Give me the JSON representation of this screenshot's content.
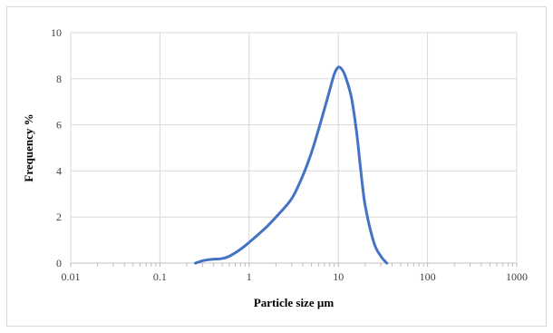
{
  "chart_data": {
    "type": "line",
    "title": "",
    "xlabel": "Particle size µm",
    "ylabel": "Frequency %",
    "x_scale": "log",
    "xlim": [
      0.01,
      1000
    ],
    "ylim": [
      0,
      10
    ],
    "x_ticks": [
      "0.01",
      "0.1",
      "1",
      "10",
      "100",
      "1000"
    ],
    "y_ticks": [
      "0",
      "2",
      "4",
      "6",
      "8",
      "10"
    ],
    "grid": true,
    "legend": "none",
    "series": [
      {
        "color": "#4472c4",
        "x": [
          0.25,
          0.3,
          0.35,
          0.4,
          0.5,
          0.6,
          0.8,
          1.0,
          1.5,
          2.0,
          3.0,
          4.0,
          5.0,
          6.0,
          7.0,
          8.0,
          9.0,
          10.0,
          11.0,
          12.0,
          14.0,
          16.0,
          18.0,
          20.0,
          25.0,
          30.0,
          35.0
        ],
        "values": [
          0.0,
          0.1,
          0.15,
          0.17,
          0.2,
          0.3,
          0.6,
          0.9,
          1.5,
          2.0,
          2.8,
          3.8,
          4.8,
          5.8,
          6.7,
          7.5,
          8.2,
          8.5,
          8.4,
          8.1,
          7.2,
          5.7,
          3.9,
          2.5,
          0.9,
          0.3,
          0.0
        ]
      }
    ]
  }
}
